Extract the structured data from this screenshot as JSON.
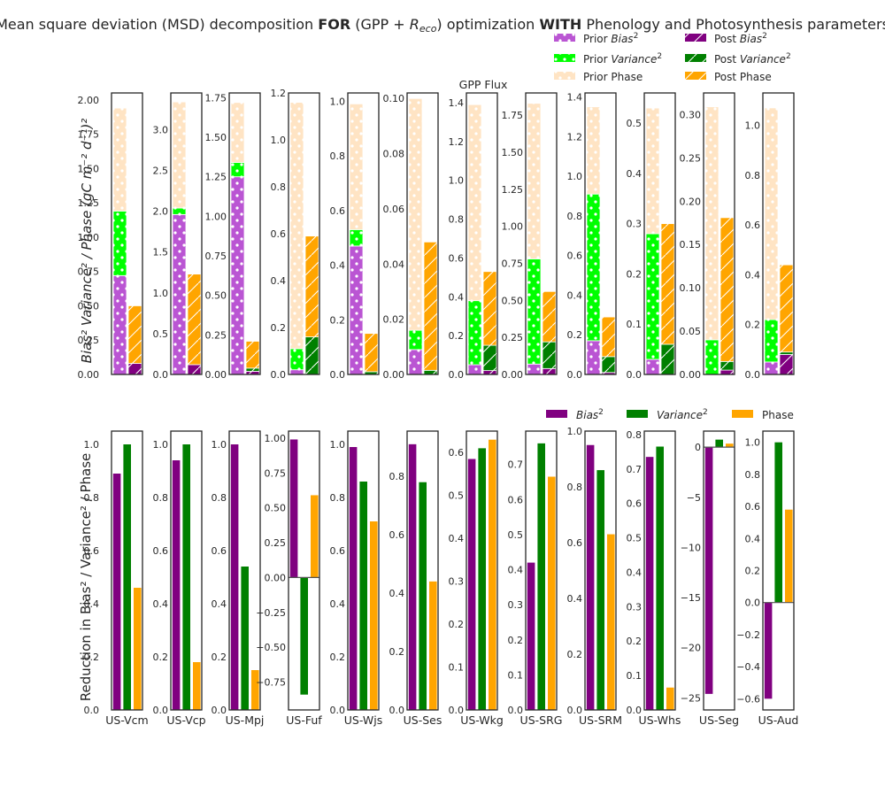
{
  "title_parts": {
    "prefix": "Mean square deviation (MSD) decomposition ",
    "for": "FOR",
    "mid1": " (GPP + ",
    "reco_r": "R",
    "reco_sub": "eco",
    "mid2": ") optimization ",
    "with": "WITH",
    "suffix": " Phenology and Photosynthesis parameters"
  },
  "colors": {
    "prior_bias": "#BA55D3",
    "prior_variance": "#00FF00",
    "prior_phase": "#FFE4C4",
    "post_bias": "#800080",
    "post_variance": "#008000",
    "post_phase": "#FFA500"
  },
  "top_legend": [
    {
      "label": "Prior ",
      "math": "Bias",
      "sup": "2",
      "key": "prior_bias",
      "hatch": "dots"
    },
    {
      "label": "Post ",
      "math": "Bias",
      "sup": "2",
      "key": "post_bias",
      "hatch": "slash"
    },
    {
      "label": "Prior ",
      "math": "Variance",
      "sup": "2",
      "key": "prior_variance",
      "hatch": "dots"
    },
    {
      "label": "Post ",
      "math": "Variance",
      "sup": "2",
      "key": "post_variance",
      "hatch": "slash"
    },
    {
      "label": "Prior Phase",
      "math": "",
      "sup": "",
      "key": "prior_phase",
      "hatch": "dots"
    },
    {
      "label": "Post Phase",
      "math": "",
      "sup": "",
      "key": "post_phase",
      "hatch": "slash"
    }
  ],
  "bottom_legend": [
    {
      "label": "",
      "math": "Bias",
      "sup": "2",
      "key": "post_bias"
    },
    {
      "label": "",
      "math": "Variance",
      "sup": "2",
      "key": "post_variance"
    },
    {
      "label": "Phase",
      "math": "",
      "sup": "",
      "key": "post_phase"
    }
  ],
  "top_ylabel": "Bias² Variance² / Phase (gC m⁻² d⁻¹)²",
  "bottom_ylabel": "Reduction in Bias² / Variance² / Phase",
  "chart_data": [
    {
      "type": "bar",
      "stacked": true,
      "title": "GPP Flux",
      "ylabel": "Bias² Variance² / Phase (gC m⁻² d⁻¹)²",
      "categories": [
        "US-Vcm",
        "US-Vcp",
        "US-Mpj",
        "US-Fuf",
        "US-Wjs",
        "US-Ses",
        "US-Wkg",
        "US-SRG",
        "US-SRM",
        "US-Whs",
        "US-Seg",
        "US-Aud"
      ],
      "panels": [
        {
          "ylim": [
            0,
            2.05
          ],
          "yticks": [
            "0.00",
            "0.25",
            "0.50",
            "0.75",
            "1.00",
            "1.25",
            "1.50",
            "1.75",
            "2.00"
          ],
          "tick_vals": [
            0,
            0.25,
            0.5,
            0.75,
            1,
            1.25,
            1.5,
            1.75,
            2
          ],
          "prior": {
            "bias": 0.72,
            "variance": 0.47,
            "phase": 0.75
          },
          "post": {
            "bias": 0.08,
            "variance": 0.0,
            "phase": 0.42
          }
        },
        {
          "ylim": [
            0,
            3.45
          ],
          "yticks": [
            "0.0",
            "0.5",
            "1.0",
            "1.5",
            "2.0",
            "2.5",
            "3.0"
          ],
          "tick_vals": [
            0,
            0.5,
            1,
            1.5,
            2,
            2.5,
            3
          ],
          "prior": {
            "bias": 1.96,
            "variance": 0.08,
            "phase": 1.3
          },
          "post": {
            "bias": 0.12,
            "variance": 0.0,
            "phase": 1.11
          }
        },
        {
          "ylim": [
            0,
            1.78
          ],
          "yticks": [
            "0.00",
            "0.25",
            "0.50",
            "0.75",
            "1.00",
            "1.25",
            "1.50",
            "1.75"
          ],
          "tick_vals": [
            0,
            0.25,
            0.5,
            0.75,
            1,
            1.25,
            1.5,
            1.75
          ],
          "prior": {
            "bias": 1.25,
            "variance": 0.09,
            "phase": 0.38
          },
          "post": {
            "bias": 0.02,
            "variance": 0.02,
            "phase": 0.17
          }
        },
        {
          "ylim": [
            0,
            1.2
          ],
          "yticks": [
            "0.0",
            "0.2",
            "0.4",
            "0.6",
            "0.8",
            "1.0",
            "1.2"
          ],
          "tick_vals": [
            0,
            0.2,
            0.4,
            0.6,
            0.8,
            1,
            1.2
          ],
          "prior": {
            "bias": 0.02,
            "variance": 0.09,
            "phase": 1.05
          },
          "post": {
            "bias": 0.0,
            "variance": 0.16,
            "phase": 0.43
          }
        },
        {
          "ylim": [
            0,
            1.03
          ],
          "yticks": [
            "0.0",
            "0.2",
            "0.4",
            "0.6",
            "0.8",
            "1.0"
          ],
          "tick_vals": [
            0,
            0.2,
            0.4,
            0.6,
            0.8,
            1
          ],
          "prior": {
            "bias": 0.47,
            "variance": 0.06,
            "phase": 0.46
          },
          "post": {
            "bias": 0.0,
            "variance": 0.01,
            "phase": 0.14
          }
        },
        {
          "ylim": [
            0,
            0.102
          ],
          "yticks": [
            "0.00",
            "0.02",
            "0.04",
            "0.06",
            "0.08",
            "0.10"
          ],
          "tick_vals": [
            0,
            0.02,
            0.04,
            0.06,
            0.08,
            0.1
          ],
          "prior": {
            "bias": 0.009,
            "variance": 0.007,
            "phase": 0.084
          },
          "post": {
            "bias": 0.0,
            "variance": 0.0015,
            "phase": 0.0465
          }
        },
        {
          "ylim": [
            0,
            1.45
          ],
          "yticks": [
            "0.0",
            "0.2",
            "0.4",
            "0.6",
            "0.8",
            "1.0",
            "1.2",
            "1.4"
          ],
          "tick_vals": [
            0,
            0.2,
            0.4,
            0.6,
            0.8,
            1,
            1.2,
            1.4
          ],
          "prior": {
            "bias": 0.05,
            "variance": 0.33,
            "phase": 1.01
          },
          "post": {
            "bias": 0.02,
            "variance": 0.13,
            "phase": 0.38
          }
        },
        {
          "ylim": [
            0,
            1.9
          ],
          "yticks": [
            "0.00",
            "0.25",
            "0.50",
            "0.75",
            "1.00",
            "1.25",
            "1.50",
            "1.75"
          ],
          "tick_vals": [
            0,
            0.25,
            0.5,
            0.75,
            1,
            1.25,
            1.5,
            1.75
          ],
          "prior": {
            "bias": 0.07,
            "variance": 0.71,
            "phase": 1.05
          },
          "post": {
            "bias": 0.04,
            "variance": 0.18,
            "phase": 0.34
          }
        },
        {
          "ylim": [
            0,
            1.42
          ],
          "yticks": [
            "0.0",
            "0.2",
            "0.4",
            "0.6",
            "0.8",
            "1.0",
            "1.2",
            "1.4"
          ],
          "tick_vals": [
            0,
            0.2,
            0.4,
            0.6,
            0.8,
            1,
            1.2,
            1.4
          ],
          "prior": {
            "bias": 0.17,
            "variance": 0.74,
            "phase": 0.44
          },
          "post": {
            "bias": 0.01,
            "variance": 0.08,
            "phase": 0.2
          }
        },
        {
          "ylim": [
            0,
            0.56
          ],
          "yticks": [
            "0.0",
            "0.1",
            "0.2",
            "0.3",
            "0.4",
            "0.5"
          ],
          "tick_vals": [
            0,
            0.1,
            0.2,
            0.3,
            0.4,
            0.5
          ],
          "prior": {
            "bias": 0.03,
            "variance": 0.25,
            "phase": 0.25
          },
          "post": {
            "bias": 0.0,
            "variance": 0.06,
            "phase": 0.24
          }
        },
        {
          "ylim": [
            0,
            0.325
          ],
          "yticks": [
            "0.00",
            "0.05",
            "0.10",
            "0.15",
            "0.20",
            "0.25",
            "0.30"
          ],
          "tick_vals": [
            0,
            0.05,
            0.1,
            0.15,
            0.2,
            0.25,
            0.3
          ],
          "prior": {
            "bias": 0.0,
            "variance": 0.04,
            "phase": 0.269
          },
          "post": {
            "bias": 0.005,
            "variance": 0.01,
            "phase": 0.166
          }
        },
        {
          "ylim": [
            0,
            1.13
          ],
          "yticks": [
            "0.0",
            "0.2",
            "0.4",
            "0.6",
            "0.8",
            "1.0"
          ],
          "tick_vals": [
            0,
            0.2,
            0.4,
            0.6,
            0.8,
            1
          ],
          "prior": {
            "bias": 0.05,
            "variance": 0.17,
            "phase": 0.85
          },
          "post": {
            "bias": 0.08,
            "variance": 0.01,
            "phase": 0.35
          }
        }
      ]
    },
    {
      "type": "bar",
      "title": "",
      "ylabel": "Reduction in Bias² / Variance² / Phase",
      "categories": [
        "US-Vcm",
        "US-Vcp",
        "US-Mpj",
        "US-Fuf",
        "US-Wjs",
        "US-Ses",
        "US-Wkg",
        "US-SRG",
        "US-SRM",
        "US-Whs",
        "US-Seg",
        "US-Aud"
      ],
      "series_names": [
        "Bias²",
        "Variance²",
        "Phase"
      ],
      "panels": [
        {
          "ylim": [
            0,
            1.05
          ],
          "yticks": [
            "0.0",
            "0.2",
            "0.4",
            "0.6",
            "0.8",
            "1.0"
          ],
          "tick_vals": [
            0,
            0.2,
            0.4,
            0.6,
            0.8,
            1
          ],
          "values": [
            0.89,
            1.0,
            0.46
          ]
        },
        {
          "ylim": [
            0,
            1.05
          ],
          "yticks": [
            "0.0",
            "0.2",
            "0.4",
            "0.6",
            "0.8",
            "1.0"
          ],
          "tick_vals": [
            0,
            0.2,
            0.4,
            0.6,
            0.8,
            1
          ],
          "values": [
            0.94,
            1.0,
            0.18
          ]
        },
        {
          "ylim": [
            0,
            1.05
          ],
          "yticks": [
            "0.0",
            "0.2",
            "0.4",
            "0.6",
            "0.8",
            "1.0"
          ],
          "tick_vals": [
            0,
            0.2,
            0.4,
            0.6,
            0.8,
            1
          ],
          "values": [
            1.0,
            0.54,
            0.15
          ]
        },
        {
          "ylim": [
            -0.95,
            1.05
          ],
          "yticks": [
            "−0.75",
            "−0.50",
            "−0.25",
            "0.00",
            "0.25",
            "0.50",
            "0.75",
            "1.00"
          ],
          "tick_vals": [
            -0.75,
            -0.5,
            -0.25,
            0,
            0.25,
            0.5,
            0.75,
            1
          ],
          "values": [
            0.99,
            -0.84,
            0.59
          ]
        },
        {
          "ylim": [
            0,
            1.05
          ],
          "yticks": [
            "0.0",
            "0.2",
            "0.4",
            "0.6",
            "0.8",
            "1.0"
          ],
          "tick_vals": [
            0,
            0.2,
            0.4,
            0.6,
            0.8,
            1
          ],
          "values": [
            0.99,
            0.86,
            0.71
          ]
        },
        {
          "ylim": [
            0,
            0.955
          ],
          "yticks": [
            "0.0",
            "0.2",
            "0.4",
            "0.6",
            "0.8"
          ],
          "tick_vals": [
            0,
            0.2,
            0.4,
            0.6,
            0.8
          ],
          "values": [
            0.91,
            0.78,
            0.44
          ]
        },
        {
          "ylim": [
            0,
            0.65
          ],
          "yticks": [
            "0.0",
            "0.1",
            "0.2",
            "0.3",
            "0.4",
            "0.5",
            "0.6"
          ],
          "tick_vals": [
            0,
            0.1,
            0.2,
            0.3,
            0.4,
            0.5,
            0.6
          ],
          "values": [
            0.585,
            0.61,
            0.63
          ]
        },
        {
          "ylim": [
            0,
            0.795
          ],
          "yticks": [
            "0.0",
            "0.1",
            "0.2",
            "0.3",
            "0.4",
            "0.5",
            "0.6",
            "0.7"
          ],
          "tick_vals": [
            0,
            0.1,
            0.2,
            0.3,
            0.4,
            0.5,
            0.6,
            0.7
          ],
          "values": [
            0.42,
            0.76,
            0.665
          ]
        },
        {
          "ylim": [
            0,
            1.0
          ],
          "yticks": [
            "0.0",
            "0.2",
            "0.4",
            "0.6",
            "0.8",
            "1.0"
          ],
          "tick_vals": [
            0,
            0.2,
            0.4,
            0.6,
            0.8,
            1
          ],
          "values": [
            0.95,
            0.86,
            0.63
          ]
        },
        {
          "ylim": [
            0,
            0.81
          ],
          "yticks": [
            "0.0",
            "0.1",
            "0.2",
            "0.3",
            "0.4",
            "0.5",
            "0.6",
            "0.7",
            "0.8"
          ],
          "tick_vals": [
            0,
            0.1,
            0.2,
            0.3,
            0.4,
            0.5,
            0.6,
            0.7,
            0.8
          ],
          "values": [
            0.735,
            0.765,
            0.065
          ]
        },
        {
          "ylim": [
            -26.2,
            1.6
          ],
          "yticks": [
            "−25",
            "−20",
            "−15",
            "−10",
            "−5",
            "0"
          ],
          "tick_vals": [
            -25,
            -20,
            -15,
            -10,
            -5,
            0
          ],
          "values": [
            -24.6,
            0.75,
            0.35
          ]
        },
        {
          "ylim": [
            -0.67,
            1.07
          ],
          "yticks": [
            "−0.6",
            "−0.4",
            "−0.2",
            "0.0",
            "0.2",
            "0.4",
            "0.6",
            "0.8",
            "1.0"
          ],
          "tick_vals": [
            -0.6,
            -0.4,
            -0.2,
            0,
            0.2,
            0.4,
            0.6,
            0.8,
            1
          ],
          "values": [
            -0.6,
            1.0,
            0.58
          ]
        }
      ]
    }
  ]
}
